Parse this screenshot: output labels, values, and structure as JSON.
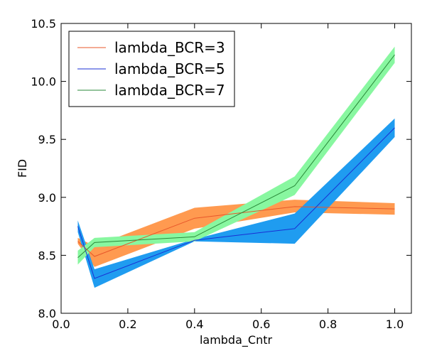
{
  "chart_data": {
    "type": "line",
    "title": "",
    "xlabel": "lambda_Cntr",
    "ylabel": "FID",
    "xlim": [
      0.0,
      1.05
    ],
    "ylim": [
      8.0,
      10.5
    ],
    "xticks": [
      "0.0",
      "0.2",
      "0.4",
      "0.6",
      "0.8",
      "1.0"
    ],
    "yticks": [
      "8.0",
      "8.5",
      "9.0",
      "9.5",
      "10.0",
      "10.5"
    ],
    "grid": false,
    "legend_position": "top-left",
    "x": [
      0.05,
      0.1,
      0.4,
      0.7,
      1.0
    ],
    "series": [
      {
        "name": "lambda_BCR=3",
        "line_color": "#e8572a",
        "band_color": "#ff9a50",
        "mean": [
          8.62,
          8.49,
          8.82,
          8.92,
          8.9
        ],
        "lower": [
          8.6,
          8.4,
          8.73,
          8.87,
          8.85
        ],
        "upper": [
          8.65,
          8.58,
          8.91,
          8.98,
          8.95
        ]
      },
      {
        "name": "lambda_BCR=5",
        "line_color": "#1a2fd4",
        "band_color": "#1f9cf0",
        "mean": [
          8.75,
          8.3,
          8.63,
          8.73,
          9.6
        ],
        "lower": [
          8.7,
          8.22,
          8.62,
          8.6,
          9.52
        ],
        "upper": [
          8.8,
          8.38,
          8.64,
          8.86,
          9.68
        ]
      },
      {
        "name": "lambda_BCR=7",
        "line_color": "#2a8a3a",
        "band_color": "#88f7a0",
        "mean": [
          8.48,
          8.61,
          8.66,
          9.1,
          10.23
        ],
        "lower": [
          8.42,
          8.57,
          8.62,
          9.02,
          10.16
        ],
        "upper": [
          8.54,
          8.65,
          8.7,
          9.18,
          10.3
        ]
      }
    ]
  }
}
